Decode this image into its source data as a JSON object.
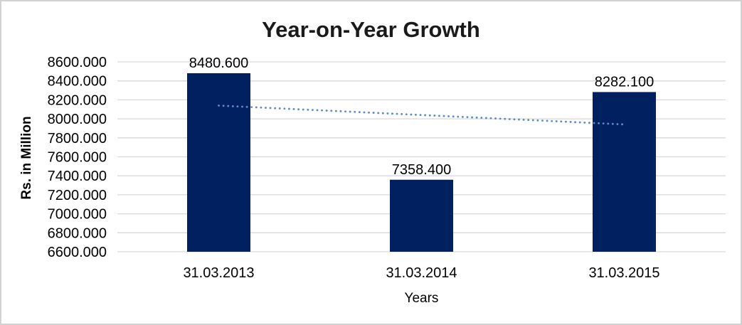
{
  "chart_data": {
    "type": "bar",
    "title": "Year-on-Year Growth",
    "xlabel": "Years",
    "ylabel": "Rs. in Million",
    "categories": [
      "31.03.2013",
      "31.03.2014",
      "31.03.2015"
    ],
    "values": [
      8480.6,
      7358.4,
      8282.1
    ],
    "value_labels": [
      "8480.600",
      "7358.400",
      "8282.100"
    ],
    "ylim": [
      6600,
      8600
    ],
    "ytick_step": 200,
    "ytick_labels": [
      "8600.000",
      "8400.000",
      "8200.000",
      "8000.000",
      "7800.000",
      "7600.000",
      "7400.000",
      "7200.000",
      "7000.000",
      "6800.000",
      "6600.000"
    ],
    "grid": "horizontal",
    "legend": "none",
    "trendline": {
      "type": "linear",
      "style": "dotted",
      "start_value": 8139.6,
      "end_value": 7941.1
    },
    "colors": {
      "bar": "#002060",
      "trendline": "#5B8BC9",
      "gridline": "#D9D9D9",
      "text": "#000000",
      "title": "#1A1A1A",
      "background": "#FFFFFF",
      "border": "#D2D2D2"
    }
  }
}
